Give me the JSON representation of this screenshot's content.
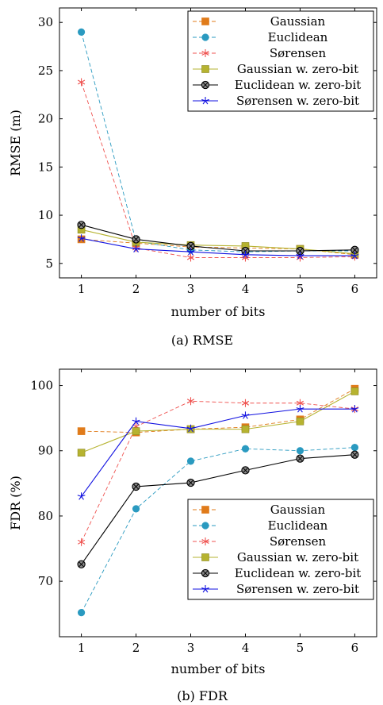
{
  "chart_data": [
    {
      "type": "line",
      "caption": "(a) RMSE",
      "xlabel": "number of bits",
      "ylabel": "RMSE (m)",
      "x": [
        1,
        2,
        3,
        4,
        5,
        6
      ],
      "xlim": [
        0.6,
        6.4
      ],
      "ylim": [
        3.5,
        31.5
      ],
      "xticks": [
        1,
        2,
        3,
        4,
        5,
        6
      ],
      "yticks": [
        5,
        10,
        15,
        20,
        25,
        30
      ],
      "legend_position": "top-right",
      "series": [
        {
          "name": "Gaussian",
          "values": [
            7.5,
            7.1,
            6.7,
            6.6,
            6.5,
            5.9
          ],
          "color": "#e07b1a",
          "marker": "square",
          "dashed": true
        },
        {
          "name": "Euclidean",
          "values": [
            29.0,
            7.3,
            6.4,
            6.2,
            6.3,
            6.3
          ],
          "color": "#2a9ac0",
          "marker": "circle",
          "dashed": true
        },
        {
          "name": "Sørensen",
          "values": [
            23.8,
            6.6,
            5.6,
            5.6,
            5.6,
            5.7
          ],
          "color": "#ef5350",
          "marker": "star",
          "dashed": true
        },
        {
          "name": "Gaussian w. zero-bit",
          "values": [
            8.5,
            7.2,
            6.9,
            6.8,
            6.5,
            6.0
          ],
          "color": "#b6b330",
          "marker": "square",
          "dashed": false
        },
        {
          "name": "Euclidean w. zero-bit",
          "values": [
            9.0,
            7.5,
            6.8,
            6.3,
            6.3,
            6.4
          ],
          "color": "#000000",
          "marker": "otimes",
          "dashed": false
        },
        {
          "name": "Sørensen w. zero-bit",
          "values": [
            7.6,
            6.5,
            6.2,
            5.9,
            5.8,
            5.8
          ],
          "color": "#1010e0",
          "marker": "star",
          "dashed": false
        }
      ]
    },
    {
      "type": "line",
      "caption": "(b) FDR",
      "xlabel": "number of bits",
      "ylabel": "FDR (%)",
      "x": [
        1,
        2,
        3,
        4,
        5,
        6
      ],
      "xlim": [
        0.6,
        6.4
      ],
      "ylim": [
        61.5,
        102.5
      ],
      "xticks": [
        1,
        2,
        3,
        4,
        5,
        6
      ],
      "yticks": [
        70,
        80,
        90,
        100
      ],
      "legend_position": "bottom-right",
      "series": [
        {
          "name": "Gaussian",
          "values": [
            93.0,
            92.8,
            93.3,
            93.6,
            94.8,
            99.5
          ],
          "color": "#e07b1a",
          "marker": "square",
          "dashed": true
        },
        {
          "name": "Euclidean",
          "values": [
            65.2,
            81.1,
            88.4,
            90.3,
            90.0,
            90.5
          ],
          "color": "#2a9ac0",
          "marker": "circle",
          "dashed": true
        },
        {
          "name": "Sørensen",
          "values": [
            76.0,
            93.7,
            97.6,
            97.3,
            97.3,
            96.4
          ],
          "color": "#ef5350",
          "marker": "star",
          "dashed": true
        },
        {
          "name": "Gaussian w. zero-bit",
          "values": [
            89.7,
            93.0,
            93.3,
            93.3,
            94.5,
            99.1
          ],
          "color": "#b6b330",
          "marker": "square",
          "dashed": false
        },
        {
          "name": "Euclidean w. zero-bit",
          "values": [
            72.6,
            84.5,
            85.1,
            87.0,
            88.8,
            89.4
          ],
          "color": "#000000",
          "marker": "otimes",
          "dashed": false
        },
        {
          "name": "Sørensen w. zero-bit",
          "values": [
            83.0,
            94.5,
            93.4,
            95.4,
            96.4,
            96.4
          ],
          "color": "#1010e0",
          "marker": "star",
          "dashed": false
        }
      ]
    }
  ]
}
